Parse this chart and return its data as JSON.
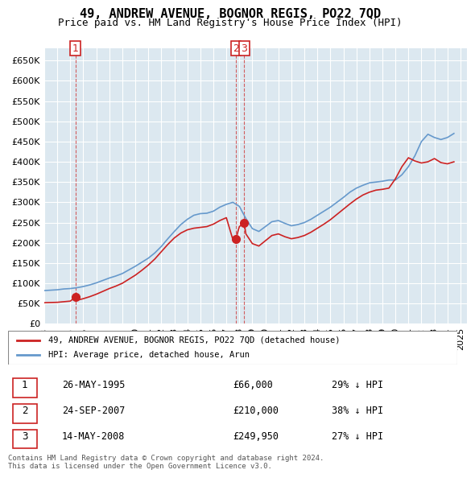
{
  "title": "49, ANDREW AVENUE, BOGNOR REGIS, PO22 7QD",
  "subtitle": "Price paid vs. HM Land Registry's House Price Index (HPI)",
  "ylim": [
    0,
    680000
  ],
  "yticks": [
    0,
    50000,
    100000,
    150000,
    200000,
    250000,
    300000,
    350000,
    400000,
    450000,
    500000,
    550000,
    600000,
    650000
  ],
  "background_color": "#e8f0f8",
  "plot_bg_color": "#e8f0f8",
  "legend_label_red": "49, ANDREW AVENUE, BOGNOR REGIS, PO22 7QD (detached house)",
  "legend_label_blue": "HPI: Average price, detached house, Arun",
  "transactions": [
    {
      "num": 1,
      "date_str": "26-MAY-1995",
      "price": 66000,
      "pct": "29%",
      "x": 1995.4
    },
    {
      "num": 2,
      "date_str": "24-SEP-2007",
      "price": 210000,
      "pct": "38%",
      "x": 2007.73
    },
    {
      "num": 3,
      "date_str": "14-MAY-2008",
      "price": 249950,
      "pct": "27%",
      "x": 2008.37
    }
  ],
  "footnote": "Contains HM Land Registry data © Crown copyright and database right 2024.\nThis data is licensed under the Open Government Licence v3.0.",
  "hpi_data": {
    "x": [
      1993,
      1993.5,
      1994,
      1994.5,
      1995,
      1995.5,
      1996,
      1996.5,
      1997,
      1997.5,
      1998,
      1998.5,
      1999,
      1999.5,
      2000,
      2000.5,
      2001,
      2001.5,
      2002,
      2002.5,
      2003,
      2003.5,
      2004,
      2004.5,
      2005,
      2005.5,
      2006,
      2006.5,
      2007,
      2007.5,
      2008,
      2008.5,
      2009,
      2009.5,
      2010,
      2010.5,
      2011,
      2011.5,
      2012,
      2012.5,
      2013,
      2013.5,
      2014,
      2014.5,
      2015,
      2015.5,
      2016,
      2016.5,
      2017,
      2017.5,
      2018,
      2018.5,
      2019,
      2019.5,
      2020,
      2020.5,
      2021,
      2021.5,
      2022,
      2022.5,
      2023,
      2023.5,
      2024,
      2024.5
    ],
    "y": [
      82000,
      83000,
      84000,
      86000,
      87000,
      89000,
      92000,
      96000,
      101000,
      107000,
      113000,
      118000,
      124000,
      133000,
      142000,
      152000,
      162000,
      175000,
      191000,
      210000,
      228000,
      245000,
      258000,
      268000,
      272000,
      273000,
      278000,
      288000,
      295000,
      300000,
      290000,
      260000,
      235000,
      228000,
      240000,
      252000,
      255000,
      248000,
      242000,
      245000,
      250000,
      258000,
      268000,
      278000,
      288000,
      300000,
      312000,
      325000,
      335000,
      342000,
      348000,
      350000,
      352000,
      355000,
      355000,
      368000,
      388000,
      415000,
      450000,
      468000,
      460000,
      455000,
      460000,
      470000
    ]
  },
  "price_paid_data": {
    "x": [
      1993,
      1993.5,
      1994,
      1994.5,
      1995,
      1995.4,
      1995.5,
      1996,
      1996.5,
      1997,
      1997.5,
      1998,
      1998.5,
      1999,
      1999.5,
      2000,
      2000.5,
      2001,
      2001.5,
      2002,
      2002.5,
      2003,
      2003.5,
      2004,
      2004.5,
      2005,
      2005.5,
      2006,
      2006.5,
      2007,
      2007.5,
      2007.73,
      2008,
      2008.37,
      2008.5,
      2009,
      2009.5,
      2010,
      2010.5,
      2011,
      2011.5,
      2012,
      2012.5,
      2013,
      2013.5,
      2014,
      2014.5,
      2015,
      2015.5,
      2016,
      2016.5,
      2017,
      2017.5,
      2018,
      2018.5,
      2019,
      2019.5,
      2020,
      2020.5,
      2021,
      2021.5,
      2022,
      2022.5,
      2023,
      2023.5,
      2024,
      2024.5
    ],
    "y": [
      52000,
      52500,
      53000,
      54500,
      56000,
      66000,
      58000,
      62000,
      67000,
      73000,
      80000,
      87000,
      93000,
      100000,
      110000,
      120000,
      132000,
      145000,
      160000,
      178000,
      196000,
      212000,
      224000,
      232000,
      236000,
      238000,
      240000,
      246000,
      255000,
      262000,
      208000,
      210000,
      240000,
      249950,
      222000,
      198000,
      192000,
      205000,
      218000,
      222000,
      215000,
      210000,
      213000,
      218000,
      226000,
      236000,
      246000,
      257000,
      270000,
      283000,
      296000,
      308000,
      318000,
      325000,
      330000,
      332000,
      335000,
      358000,
      388000,
      410000,
      402000,
      397000,
      400000,
      408000,
      398000,
      395000,
      400000
    ]
  }
}
